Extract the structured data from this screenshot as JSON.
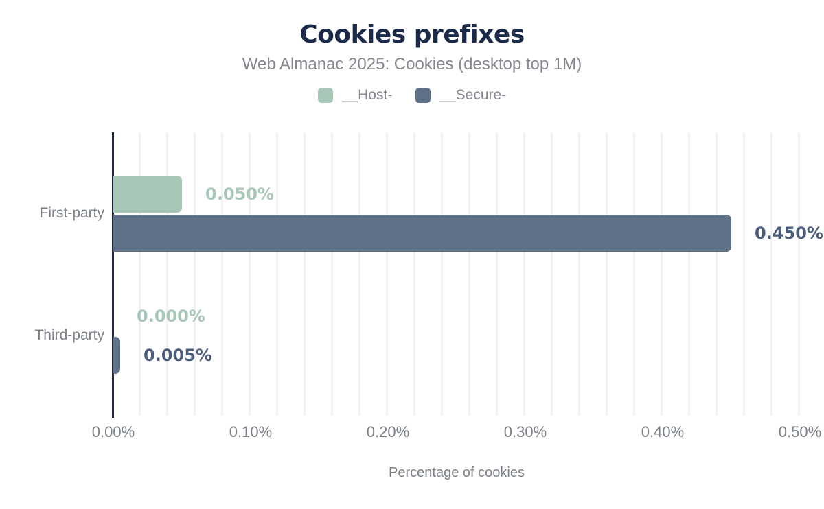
{
  "chart_data": {
    "type": "bar",
    "orientation": "horizontal",
    "title": "Cookies prefixes",
    "subtitle": "Web Almanac 2025: Cookies (desktop top 1M)",
    "categories": [
      "First-party",
      "Third-party"
    ],
    "series": [
      {
        "name": "__Host-",
        "color": "#a9c7b7",
        "label_color": "#a9c7b7",
        "values": [
          0.05,
          0.0
        ],
        "labels": [
          "0.050%",
          "0.000%"
        ]
      },
      {
        "name": "__Secure-",
        "color": "#5f7089",
        "label_color": "#4a5c7a",
        "values": [
          0.45,
          0.005
        ],
        "labels": [
          "0.450%",
          "0.005%"
        ]
      }
    ],
    "xlabel": "Percentage of cookies",
    "ylabel": "",
    "xlim": [
      0,
      0.5
    ],
    "x_ticks": [
      {
        "value": 0.0,
        "label": "0.00%"
      },
      {
        "value": 0.1,
        "label": "0.10%"
      },
      {
        "value": 0.2,
        "label": "0.20%"
      },
      {
        "value": 0.3,
        "label": "0.30%"
      },
      {
        "value": 0.4,
        "label": "0.40%"
      },
      {
        "value": 0.5,
        "label": "0.50%"
      }
    ],
    "grid": "vertical, every 0.02%",
    "legend_position": "top-center"
  },
  "colors": {
    "title": "#1b2a49",
    "subtitle": "#84888e",
    "legend_text": "#84888e",
    "axis_line": "#1b2a49",
    "tick_text": "#7b8086",
    "category_text": "#7b8086",
    "xlabel_text": "#7b8086",
    "gridline": "#f2f2f2",
    "background": "#ffffff"
  }
}
